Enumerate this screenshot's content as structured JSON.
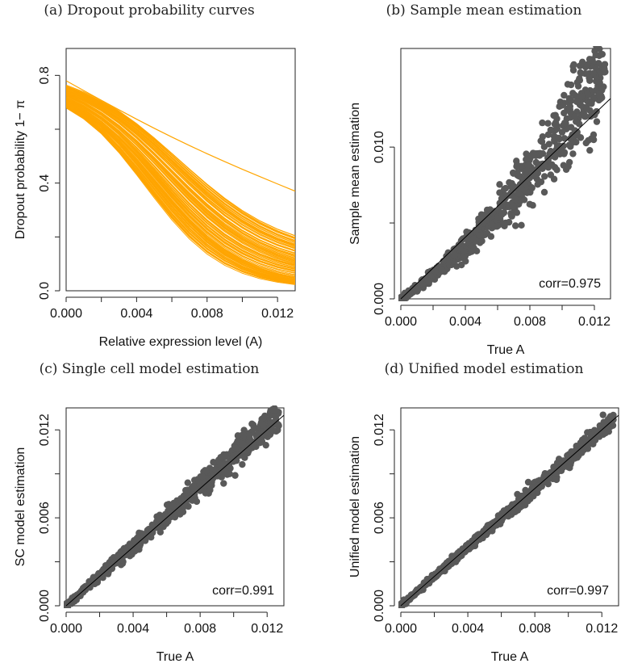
{
  "chart_data": [
    {
      "type": "line",
      "caption": "(a) Dropout probability curves",
      "xlabel": "Relative expression level (A)",
      "ylabel": "Dropout probability 1− π",
      "xlim": [
        0,
        0.013
      ],
      "ylim": [
        0,
        0.9
      ],
      "xticks": [
        "0.000",
        "0.004",
        "0.008",
        "0.012"
      ],
      "yticks": [
        "0.0",
        "0.4",
        "0.8"
      ],
      "series_color": "#FFA500",
      "x": [
        0,
        0.001,
        0.002,
        0.003,
        0.004,
        0.005,
        0.006,
        0.007,
        0.008,
        0.009,
        0.01,
        0.011,
        0.012,
        0.013
      ],
      "curves_summary": {
        "outlier_curve": {
          "start": 0.78,
          "end": 0.37
        },
        "upper_band": {
          "start": 0.76,
          "end": 0.2
        },
        "lower_band": {
          "start": 0.68,
          "end": 0.02
        }
      },
      "grid": false
    },
    {
      "type": "scatter",
      "caption": "(b) Sample mean estimation",
      "xlabel": "True A",
      "ylabel": "Sample mean estimation",
      "xlim": [
        0,
        0.013
      ],
      "ylim": [
        0,
        0.0165
      ],
      "xticks": [
        "0.000",
        "0.004",
        "0.008",
        "0.012"
      ],
      "yticks": [
        "0.000",
        "0.010"
      ],
      "annotation": "corr=0.975",
      "point_color": "#595959",
      "n_points": 700,
      "trend": {
        "slope": 1.2,
        "curvature": "convex",
        "noise": "moderate"
      },
      "reference_line": {
        "x": [
          0,
          0.013
        ],
        "y": [
          0,
          0.0132
        ]
      },
      "grid": false
    },
    {
      "type": "scatter",
      "caption": "(c) Single cell model estimation",
      "xlabel": "True A",
      "ylabel": "SC model estimation",
      "xlim": [
        0,
        0.013
      ],
      "ylim": [
        0,
        0.0135
      ],
      "xticks": [
        "0.000",
        "0.004",
        "0.008",
        "0.012"
      ],
      "yticks": [
        "0.000",
        "0.006",
        "0.012"
      ],
      "annotation": "corr=0.991",
      "point_color": "#595959",
      "n_points": 700,
      "trend": {
        "slope": 1.02,
        "noise": "low"
      },
      "reference_line": {
        "x": [
          0,
          0.013
        ],
        "y": [
          0,
          0.013
        ]
      },
      "grid": false
    },
    {
      "type": "scatter",
      "caption": "(d) Unified model estimation",
      "xlabel": "True A",
      "ylabel": "Unified model estimation",
      "xlim": [
        0,
        0.013
      ],
      "ylim": [
        0,
        0.0135
      ],
      "xticks": [
        "0.000",
        "0.004",
        "0.008",
        "0.012"
      ],
      "yticks": [
        "0.000",
        "0.006",
        "0.012"
      ],
      "annotation": "corr=0.997",
      "point_color": "#595959",
      "n_points": 700,
      "trend": {
        "slope": 1.0,
        "noise": "very low"
      },
      "reference_line": {
        "x": [
          0,
          0.013
        ],
        "y": [
          0,
          0.013
        ]
      },
      "grid": false
    }
  ]
}
